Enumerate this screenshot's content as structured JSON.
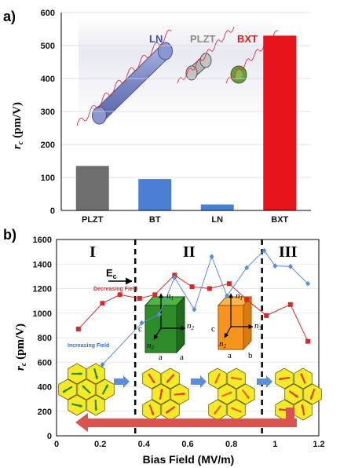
{
  "panels": {
    "a": {
      "label": "a)"
    },
    "b": {
      "label": "b)"
    }
  },
  "chart_data": [
    {
      "type": "bar",
      "categories": [
        "PLZT",
        "BT",
        "LN",
        "BXT"
      ],
      "values": [
        135,
        95,
        18,
        530
      ],
      "bar_colors": [
        "#6f6f6f",
        "#4a7fd4",
        "#4a7fd4",
        "#e8141c"
      ],
      "ylabel_main": "r",
      "ylabel_sub": "c",
      "ylabel_unit": " (pm/V)",
      "ylim": [
        0,
        600
      ],
      "yticks": [
        0,
        100,
        200,
        300,
        400,
        500,
        600
      ],
      "grid": true,
      "inset_labels": [
        {
          "text": "LN",
          "color": "#3a4bb5"
        },
        {
          "text": "PLZT",
          "color": "#8a8a8a"
        },
        {
          "text": "BXT",
          "color": "#e21a1a"
        }
      ]
    },
    {
      "type": "line",
      "xlabel": "Bias Field (MV/m)",
      "ylabel_main": "r",
      "ylabel_sub": "c",
      "ylabel_unit": " (pm/V)",
      "xlim": [
        0,
        1.2
      ],
      "ylim": [
        0,
        1600
      ],
      "xticks": [
        0,
        0.2,
        0.4,
        0.6,
        0.8,
        1,
        1.2
      ],
      "xtick_labels": [
        "0",
        "0.2",
        "0.4",
        "0.6",
        "0.8",
        "1",
        "1.2"
      ],
      "yticks": [
        0,
        200,
        400,
        600,
        800,
        1000,
        1200,
        1400,
        1600
      ],
      "grid": true,
      "regions": [
        "I",
        "II",
        "III"
      ],
      "region_boundaries_x": [
        0.36,
        0.94
      ],
      "annotations": {
        "ec_main": "E",
        "ec_sub": "c"
      },
      "axes_labels": {
        "n": "n",
        "one": "1",
        "two": "2",
        "three": "3",
        "a": "a",
        "b": "b",
        "c": "c"
      },
      "series": [
        {
          "name": "Decreasing Field",
          "color": "#d22a2a",
          "marker": "square",
          "x": [
            0.1,
            0.21,
            0.29,
            0.38,
            0.45,
            0.54,
            0.62,
            0.7,
            0.79,
            0.87,
            0.96,
            1.07,
            1.15
          ],
          "y": [
            870,
            1080,
            1150,
            1120,
            1150,
            1310,
            1215,
            1200,
            1240,
            1110,
            980,
            1070,
            770
          ]
        },
        {
          "name": "Increasing Field",
          "color": "#5b8ed6",
          "marker": "diamond",
          "x": [
            0.21,
            0.39,
            0.47,
            0.54,
            0.63,
            0.71,
            0.78,
            0.87,
            0.95,
            1.0,
            1.07,
            1.15
          ],
          "y": [
            580,
            920,
            990,
            1290,
            1030,
            1460,
            1140,
            1370,
            1510,
            1385,
            1380,
            1240
          ]
        }
      ]
    }
  ]
}
